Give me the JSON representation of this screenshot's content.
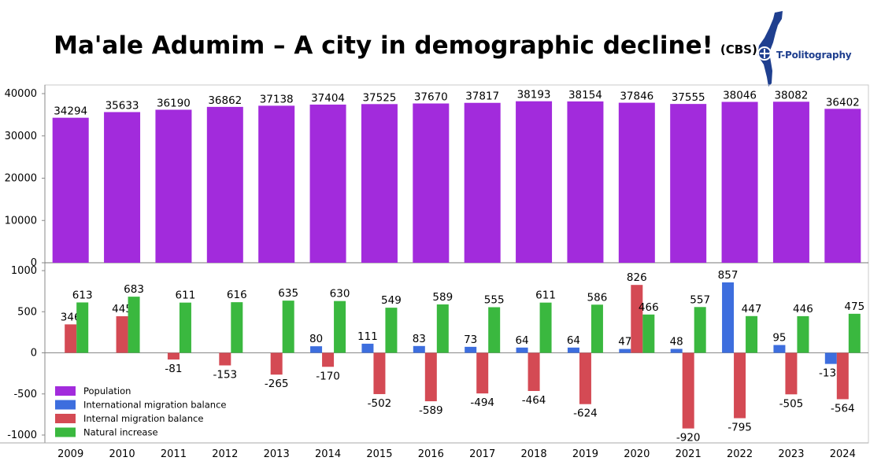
{
  "header": {
    "title": "Ma'ale Adumim – A city in demographic decline!",
    "source": "(CBS)",
    "brand": "T-Politography"
  },
  "colors": {
    "population": "#a22bdc",
    "international": "#3d6ede",
    "internal": "#d44a54",
    "natural": "#3ab83f",
    "logo": "#1f3f8f"
  },
  "chart_data": [
    {
      "type": "bar",
      "categories": [
        "2009",
        "2010",
        "2011",
        "2012",
        "2013",
        "2014",
        "2015",
        "2016",
        "2017",
        "2018",
        "2019",
        "2020",
        "2021",
        "2022",
        "2023",
        "2024"
      ],
      "series": [
        {
          "name": "Population",
          "values": [
            34294,
            35633,
            36190,
            36862,
            37138,
            37404,
            37525,
            37670,
            37817,
            38193,
            38154,
            37846,
            37555,
            38046,
            38082,
            36402
          ]
        }
      ],
      "ylim": [
        0,
        40000
      ],
      "yticks": [
        0,
        10000,
        20000,
        30000,
        40000
      ],
      "grid": false
    },
    {
      "type": "bar",
      "categories": [
        "2009",
        "2010",
        "2011",
        "2012",
        "2013",
        "2014",
        "2015",
        "2016",
        "2017",
        "2018",
        "2019",
        "2020",
        "2021",
        "2022",
        "2023",
        "2024"
      ],
      "series": [
        {
          "name": "International migration balance",
          "values": [
            null,
            null,
            null,
            null,
            null,
            80,
            111,
            83,
            73,
            64,
            64,
            47,
            48,
            857,
            95,
            -135
          ]
        },
        {
          "name": "Internal migration balance",
          "values": [
            346,
            445,
            -81,
            -153,
            -265,
            -170,
            -502,
            -589,
            -494,
            -464,
            -624,
            826,
            -920,
            -795,
            -505,
            -564
          ]
        },
        {
          "name": "Natural increase",
          "values": [
            613,
            683,
            611,
            616,
            635,
            630,
            549,
            589,
            555,
            611,
            586,
            466,
            557,
            447,
            446,
            475
          ]
        }
      ],
      "ylim": [
        -1000,
        1000
      ],
      "yticks": [
        -1000,
        -500,
        0,
        500,
        1000
      ],
      "legend": "bottom-left",
      "grid": false
    }
  ]
}
